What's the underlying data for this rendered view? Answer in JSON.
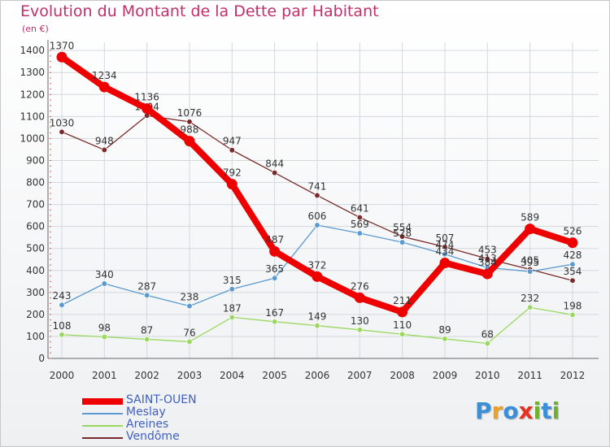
{
  "chart_data": {
    "type": "line",
    "title": "Evolution du Montant de la Dette par Habitant",
    "subtitle": "(en €)",
    "x": [
      "2000",
      "2001",
      "2002",
      "2003",
      "2004",
      "2005",
      "2006",
      "2007",
      "2008",
      "2009",
      "2010",
      "2011",
      "2012"
    ],
    "yticks": [
      "0",
      "100",
      "200",
      "300",
      "400",
      "500",
      "600",
      "700",
      "800",
      "900",
      "1000",
      "1100",
      "1200",
      "1300",
      "1400"
    ],
    "ylim": [
      0,
      1400
    ],
    "grid": true,
    "legend_position": "bottom-left",
    "series": [
      {
        "name": "Vendôme",
        "color": "#7a2a2a",
        "values": [
          1030,
          948,
          1104,
          1076,
          947,
          844,
          741,
          641,
          554,
          507,
          453,
          405,
          354
        ],
        "labels": [
          "1030",
          "948",
          "1104",
          "1076",
          "947",
          "844",
          "741",
          "641",
          "554",
          "507",
          "453",
          "405",
          "354"
        ]
      },
      {
        "name": "Meslay",
        "color": "#5a9ad0",
        "values": [
          243,
          340,
          287,
          238,
          315,
          365,
          606,
          569,
          528,
          474,
          413,
          395,
          428
        ],
        "labels": [
          "243",
          "340",
          "287",
          "238",
          "315",
          "365",
          "606",
          "569",
          "528",
          "474",
          "413",
          "395",
          "428"
        ]
      },
      {
        "name": "Areines",
        "color": "#9ad860",
        "values": [
          108,
          98,
          87,
          76,
          187,
          167,
          149,
          130,
          110,
          89,
          68,
          232,
          198
        ],
        "labels": [
          "108",
          "98",
          "87",
          "76",
          "187",
          "167",
          "149",
          "130",
          "110",
          "89",
          "68",
          "232",
          "198"
        ]
      },
      {
        "name": "SAINT-OUEN",
        "color": "#ee0000",
        "values": [
          1370,
          1234,
          1136,
          988,
          792,
          487,
          372,
          276,
          211,
          434,
          384,
          589,
          526
        ],
        "labels": [
          "1370",
          "1234",
          "1136",
          "988",
          "792",
          "487",
          "372",
          "276",
          "211",
          "434",
          "384",
          "589",
          "526"
        ]
      }
    ],
    "legend": [
      {
        "name": "SAINT-OUEN",
        "color": "#ee0000"
      },
      {
        "name": "Meslay",
        "color": "#5a9ad0"
      },
      {
        "name": "Areines",
        "color": "#9ad860"
      },
      {
        "name": "Vendôme",
        "color": "#7a2a2a"
      }
    ]
  },
  "logo": {
    "letters": [
      "P",
      "r",
      "o",
      "x",
      "i",
      "t",
      "i"
    ],
    "colors": [
      "#3a8fd8",
      "#f0a020",
      "#3a8fd8",
      "#e83020",
      "#70b030",
      "#3a8fd8",
      "#70b030"
    ]
  }
}
